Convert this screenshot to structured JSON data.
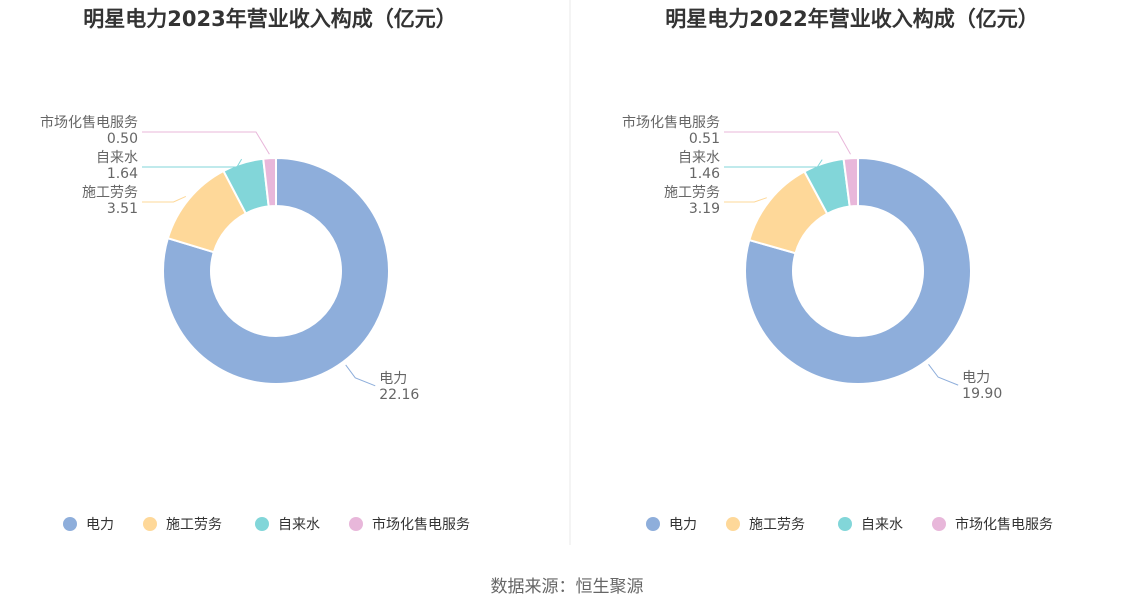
{
  "chart_data": [
    {
      "type": "pie",
      "title": "明星电力2023年营业收入构成（亿元）",
      "categories": [
        "电力",
        "施工劳务",
        "自来水",
        "市场化售电服务"
      ],
      "values": [
        22.16,
        3.51,
        1.64,
        0.5
      ],
      "value_labels": [
        "22.16",
        "3.51",
        "1.64",
        "0.50"
      ],
      "colors": [
        "#8eaedb",
        "#fed899",
        "#82d6d9",
        "#e8b7da"
      ],
      "legend_position": "bottom"
    },
    {
      "type": "pie",
      "title": "明星电力2022年营业收入构成（亿元）",
      "categories": [
        "电力",
        "施工劳务",
        "自来水",
        "市场化售电服务"
      ],
      "values": [
        19.9,
        3.19,
        1.46,
        0.51
      ],
      "value_labels": [
        "19.90",
        "3.19",
        "1.46",
        "0.51"
      ],
      "colors": [
        "#8eaedb",
        "#fed899",
        "#82d6d9",
        "#e8b7da"
      ],
      "legend_position": "bottom"
    }
  ],
  "source": "数据来源：恒生聚源"
}
